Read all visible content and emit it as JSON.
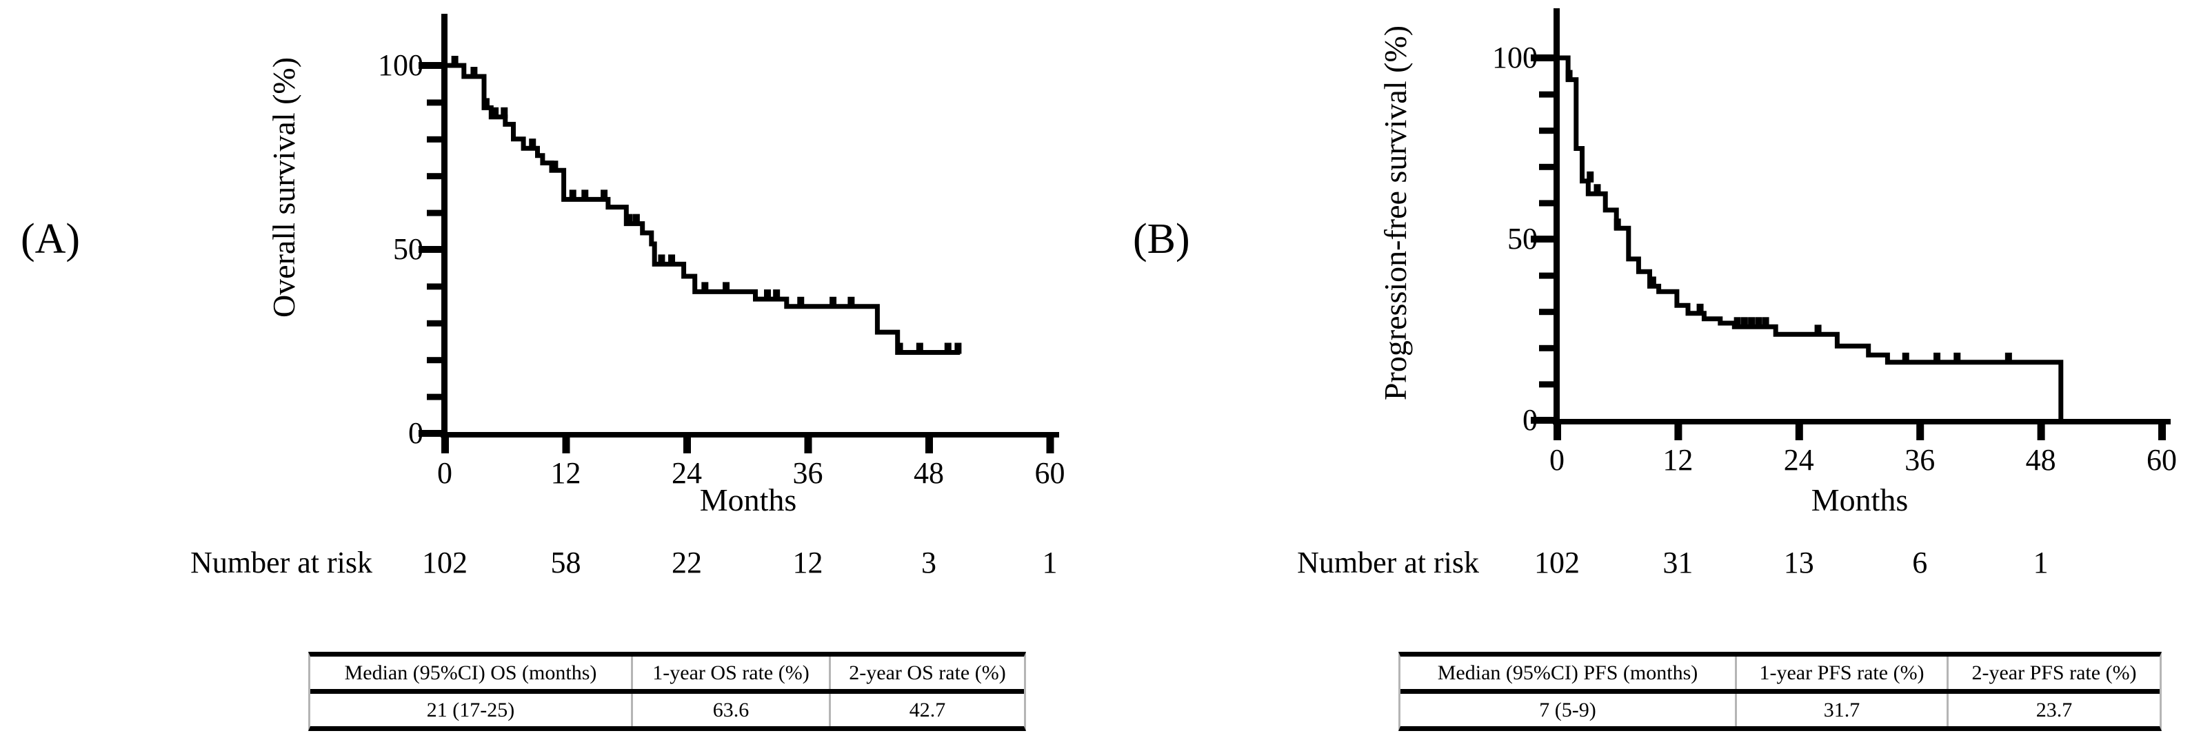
{
  "figure_caption_labels": {
    "panel_a": "(A)",
    "panel_b": "(B)"
  },
  "colors": {
    "ink": "#000000",
    "background": "#ffffff",
    "table_divider": "#b5b5b5"
  },
  "chart_data": [
    {
      "type": "line",
      "subtype": "kaplan_meier_step_curve",
      "panel_label": "(A)",
      "title": "Overall survival",
      "curve_name": "os-km-curve",
      "xlabel": "Months",
      "ylabel": "Overall survival (%)",
      "xlim": [
        0,
        60
      ],
      "ylim": [
        0,
        100
      ],
      "xticks": [
        0,
        12,
        24,
        36,
        48,
        60
      ],
      "yticks": [
        100,
        50,
        0
      ],
      "y_minor_tick_step": 10,
      "grid": false,
      "legend": "none",
      "line_color": "#000000",
      "steps_time_pct": [
        [
          0,
          100
        ],
        [
          1.9,
          97
        ],
        [
          3.9,
          88.5
        ],
        [
          4.6,
          86
        ],
        [
          6.0,
          84
        ],
        [
          6.8,
          80
        ],
        [
          7.8,
          77.5
        ],
        [
          9.2,
          75.5
        ],
        [
          9.7,
          73.5
        ],
        [
          10.6,
          71.5
        ],
        [
          11.8,
          63.6
        ],
        [
          16.2,
          61.5
        ],
        [
          18.0,
          57
        ],
        [
          19.6,
          54.5
        ],
        [
          20.5,
          51.5
        ],
        [
          20.8,
          46
        ],
        [
          23.7,
          42.7
        ],
        [
          24.8,
          38.5
        ],
        [
          30.8,
          36.5
        ],
        [
          33.9,
          34.5
        ],
        [
          42.9,
          27.5
        ],
        [
          44.9,
          22
        ]
      ],
      "curve_end_time": 51.1,
      "censor_marks_time_pct": [
        [
          1.0,
          100
        ],
        [
          2.9,
          97
        ],
        [
          4.1,
          88.5
        ],
        [
          5.0,
          86
        ],
        [
          5.9,
          86
        ],
        [
          8.7,
          77.5
        ],
        [
          10.9,
          71.5
        ],
        [
          12.7,
          63.6
        ],
        [
          13.9,
          63.6
        ],
        [
          15.8,
          63.6
        ],
        [
          18.3,
          57
        ],
        [
          19.0,
          57
        ],
        [
          21.5,
          46
        ],
        [
          22.5,
          46
        ],
        [
          25.8,
          38.5
        ],
        [
          27.9,
          38.5
        ],
        [
          32.0,
          36.5
        ],
        [
          32.9,
          36.5
        ],
        [
          35.3,
          34.5
        ],
        [
          38.5,
          34.5
        ],
        [
          40.3,
          34.5
        ],
        [
          45.1,
          22
        ],
        [
          47.1,
          22
        ],
        [
          49.9,
          22
        ],
        [
          50.9,
          22
        ]
      ],
      "number_at_risk": {
        "label": "Number at risk",
        "times": [
          0,
          12,
          24,
          36,
          48,
          60
        ],
        "values": [
          "102",
          "58",
          "22",
          "12",
          "3",
          "1"
        ]
      },
      "summary_table": {
        "headers": [
          "Median (95%CI) OS (months)",
          "1-year OS rate (%)",
          "2-year OS rate (%)"
        ],
        "values": [
          "21 (17-25)",
          "63.6",
          "42.7"
        ]
      }
    },
    {
      "type": "line",
      "subtype": "kaplan_meier_step_curve",
      "panel_label": "(B)",
      "title": "Progression-free survival",
      "curve_name": "pfs-km-curve",
      "xlabel": "Months",
      "ylabel": "Progression-free survival (%)",
      "xlim": [
        0,
        60
      ],
      "ylim": [
        0,
        100
      ],
      "xticks": [
        0,
        12,
        24,
        36,
        48,
        60
      ],
      "yticks": [
        100,
        50,
        0
      ],
      "y_minor_tick_step": 10,
      "grid": false,
      "legend": "none",
      "line_color": "#000000",
      "steps_time_pct": [
        [
          0,
          100
        ],
        [
          1.1,
          94
        ],
        [
          1.9,
          75
        ],
        [
          2.5,
          66
        ],
        [
          3.1,
          62.5
        ],
        [
          4.8,
          58
        ],
        [
          5.9,
          53
        ],
        [
          7.1,
          44.5
        ],
        [
          8.1,
          41
        ],
        [
          9.2,
          37
        ],
        [
          10.1,
          35.5
        ],
        [
          11.9,
          31.7
        ],
        [
          13.0,
          29.5
        ],
        [
          14.6,
          28
        ],
        [
          16.2,
          26.8
        ],
        [
          17.6,
          25.8
        ],
        [
          21.7,
          23.7
        ],
        [
          27.8,
          20.5
        ],
        [
          30.9,
          18
        ],
        [
          32.8,
          16
        ],
        [
          50.0,
          0
        ]
      ],
      "curve_end_time": 50.0,
      "censor_marks_time_pct": [
        [
          1.2,
          94
        ],
        [
          3.3,
          66
        ],
        [
          4.0,
          62.5
        ],
        [
          6.0,
          53
        ],
        [
          9.5,
          37
        ],
        [
          14.2,
          29.5
        ],
        [
          17.9,
          25.8
        ],
        [
          18.6,
          25.8
        ],
        [
          19.3,
          25.8
        ],
        [
          20.0,
          25.8
        ],
        [
          20.7,
          25.8
        ],
        [
          25.9,
          23.7
        ],
        [
          34.6,
          16
        ],
        [
          37.7,
          16
        ],
        [
          39.7,
          16
        ],
        [
          44.8,
          16
        ]
      ],
      "number_at_risk": {
        "label": "Number at risk",
        "times": [
          0,
          12,
          24,
          36,
          48
        ],
        "values": [
          "102",
          "31",
          "13",
          "6",
          "1"
        ]
      },
      "summary_table": {
        "headers": [
          "Median (95%CI) PFS (months)",
          "1-year PFS rate (%)",
          "2-year PFS rate (%)"
        ],
        "values": [
          "7 (5-9)",
          "31.7",
          "23.7"
        ]
      }
    }
  ]
}
